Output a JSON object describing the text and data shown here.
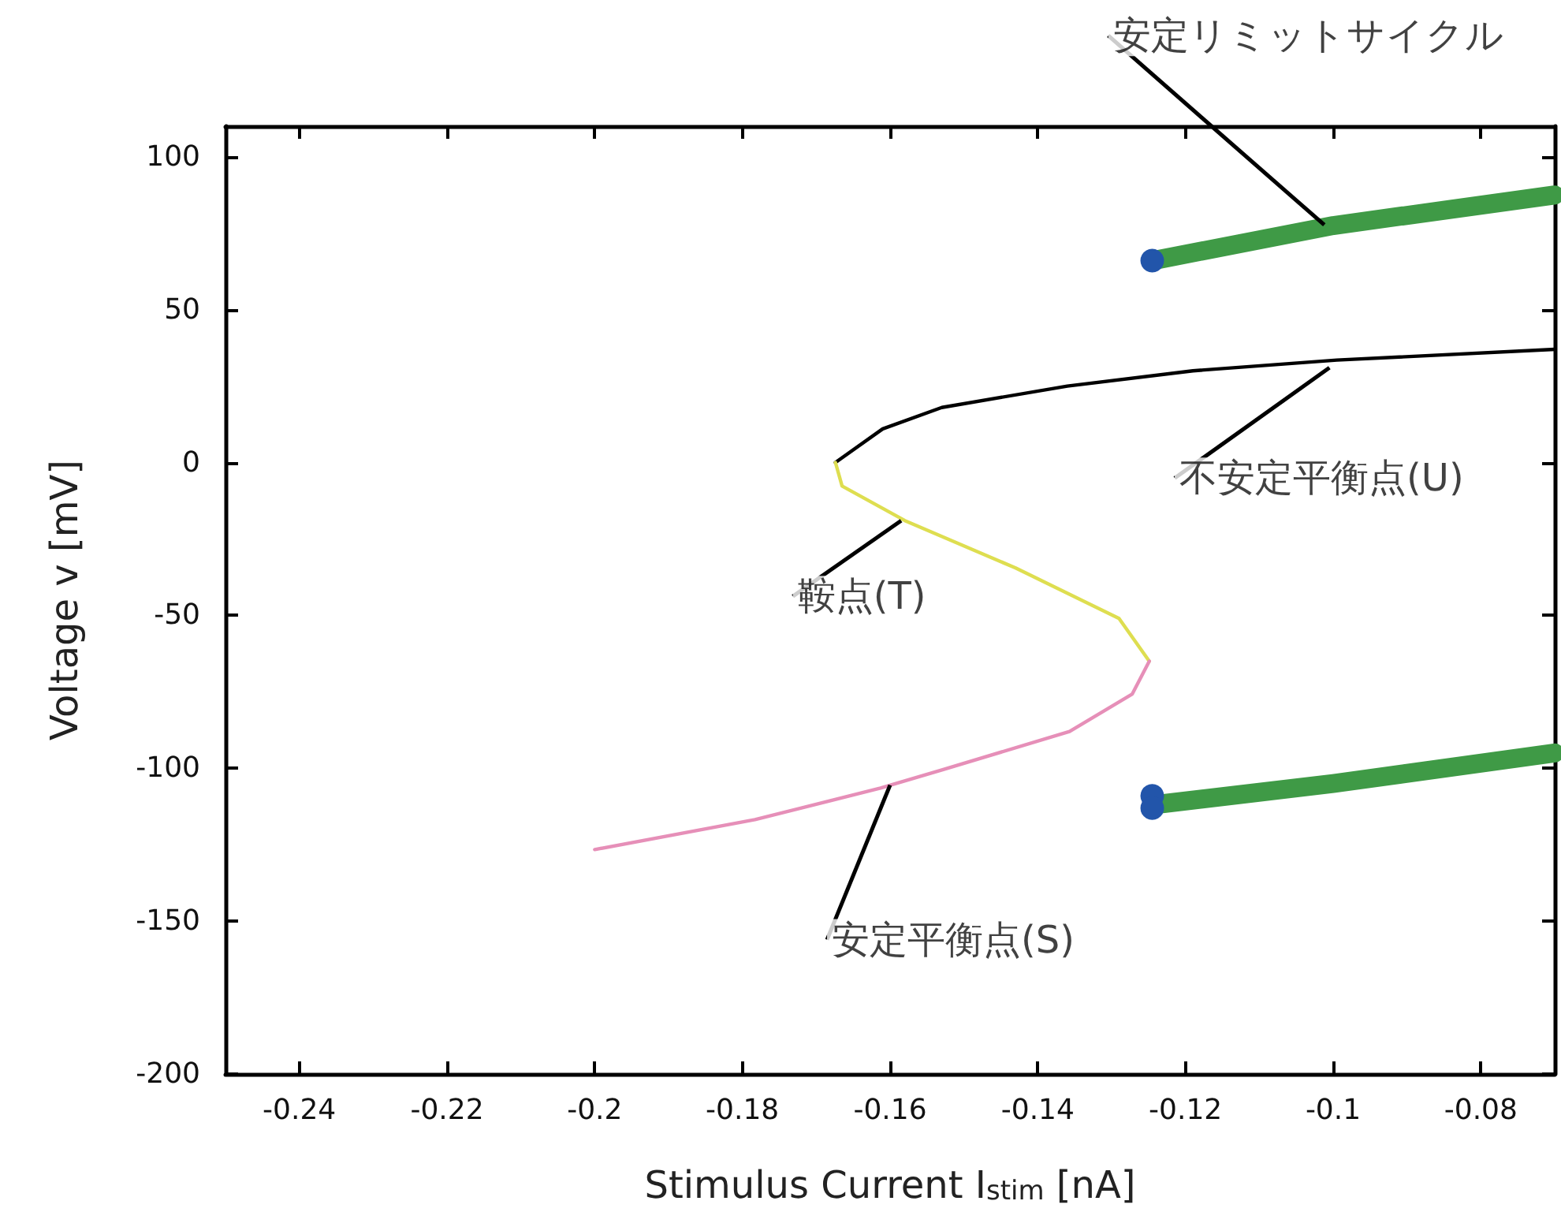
{
  "chart_data": {
    "type": "line",
    "xlabel": "Stimulus Current I$_{stim}$ [nA]",
    "ylabel": "Voltage v [mV]",
    "xlim": [
      -0.25,
      -0.07
    ],
    "xticks": [
      -0.24,
      -0.22,
      -0.2,
      -0.18,
      -0.16,
      -0.14,
      -0.12,
      -0.1,
      -0.08
    ],
    "ylim": [
      -200,
      110
    ],
    "yticks": [
      -200,
      -150,
      -100,
      -50,
      0,
      50,
      100
    ],
    "grid": false,
    "series": [
      {
        "color": "#000000",
        "x": [
          -0.1674,
          -0.161,
          -0.153,
          -0.136,
          -0.119,
          -0.0995,
          -0.07
        ],
        "values": [
          0,
          11,
          18,
          25,
          30,
          33.5,
          37
        ]
      },
      {
        "color": "#dede50",
        "x": [
          -0.1674,
          -0.1665,
          -0.158,
          -0.143,
          -0.129,
          -0.1249
        ],
        "values": [
          0,
          -7.7,
          -19,
          -34.5,
          -51,
          -65
        ]
      },
      {
        "color": "#e68fb8",
        "x": [
          -0.1249,
          -0.1272,
          -0.1357,
          -0.1528,
          -0.1613,
          -0.1783,
          -0.2
        ],
        "values": [
          -65,
          -75.7,
          -88,
          -100.4,
          -106.5,
          -116.8,
          -126.6
        ]
      },
      {
        "color": "#3f9a46",
        "x": [
          -0.1245,
          -0.1,
          -0.07
        ],
        "values": [
          66,
          77.5,
          87.5
        ]
      },
      {
        "color": "#3f9a46",
        "x": [
          -0.1245,
          -0.1,
          -0.07
        ],
        "values": [
          -112,
          -105,
          -95
        ]
      },
      {
        "type": "scatter",
        "color": "#2255aa",
        "x": [
          -0.1245,
          -0.1245,
          -0.1245
        ],
        "values": [
          66,
          -109,
          -113
        ]
      }
    ],
    "annotations": [
      {
        "text": "安定リミットサイクル",
        "x": -0.1012,
        "y": 77.7
      },
      {
        "text": "不安定平衡点(U)",
        "x": -0.1005,
        "y": 31
      },
      {
        "text": "鞍点(T)",
        "x": -0.1585,
        "y": -19
      },
      {
        "text": "安定平衡点(S)",
        "x": -0.16,
        "y": -105.5
      }
    ]
  }
}
